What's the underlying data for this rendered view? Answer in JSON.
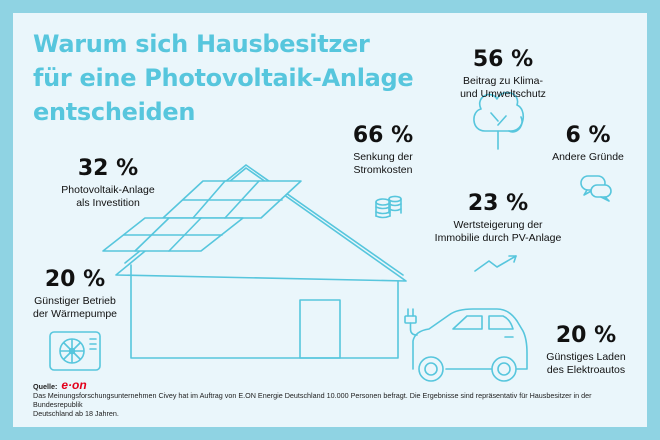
{
  "title": {
    "lines": [
      "Warum sich Hausbesitzer",
      "für eine Photovoltaik-Anlage",
      "entscheiden"
    ]
  },
  "stats": {
    "klima": {
      "percent": "56 %",
      "lines": [
        "Beitrag zu Klima-",
        "und Umweltschutz"
      ]
    },
    "strom": {
      "percent": "66 %",
      "lines": [
        "Senkung der",
        "Stromkosten"
      ]
    },
    "andere": {
      "percent": "6 %",
      "lines": [
        "Andere Gründe"
      ]
    },
    "invest": {
      "percent": "32 %",
      "lines": [
        "Photovoltaik-Anlage",
        "als Investition"
      ]
    },
    "wert": {
      "percent": "23 %",
      "lines": [
        "Wertsteigerung der",
        "Immobilie durch PV-Anlage"
      ]
    },
    "waerme": {
      "percent": "20 %",
      "lines": [
        "Günstiger Betrieb",
        "der Wärmepumpe"
      ]
    },
    "laden": {
      "percent": "20 %",
      "lines": [
        "Günstiges Laden",
        "des Elektroautos"
      ]
    }
  },
  "source": {
    "label": "Quelle:",
    "logo": "e·on",
    "note_lines": [
      "Das Meinungsforschungsunternehmen Civey hat im Auftrag von E.ON Energie Deutschland 10.000 Personen befragt. Die Ergebnisse sind repräsentativ für Hausbesitzer in der Bundesrepublik",
      "Deutschland ab 18 Jahren."
    ]
  },
  "colors": {
    "accent": "#57c6dd",
    "background": "#eaf6fb",
    "frame": "#8fd3e3",
    "logo": "#e3001b"
  },
  "icons": [
    "tree-icon",
    "coins-icon",
    "speech-bubbles-icon",
    "trend-arrow-icon",
    "solar-house-icon",
    "heat-pump-icon",
    "ev-plug-icon",
    "electric-car-icon"
  ]
}
